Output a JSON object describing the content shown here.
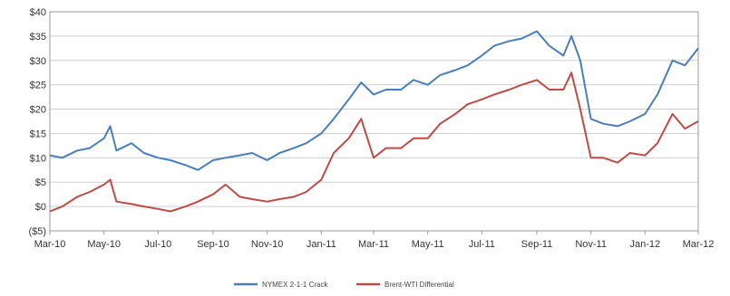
{
  "chart_data": {
    "type": "line",
    "title": "",
    "xlabel": "",
    "ylabel": "",
    "ylim": [
      -5,
      40
    ],
    "y_ticks": [
      "($5)",
      "$0",
      "$5",
      "$10",
      "$15",
      "$20",
      "$25",
      "$30",
      "$35",
      "$40"
    ],
    "y_tick_values": [
      -5,
      0,
      5,
      10,
      15,
      20,
      25,
      30,
      35,
      40
    ],
    "x_ticks": [
      "Mar-10",
      "May-10",
      "Jul-10",
      "Sep-10",
      "Nov-10",
      "Jan-11",
      "Mar-11",
      "May-11",
      "Jul-11",
      "Sep-11",
      "Nov-11",
      "Jan-12",
      "Mar-12"
    ],
    "x_tick_values": [
      "2010-03-01",
      "2010-05-01",
      "2010-07-01",
      "2010-09-01",
      "2010-11-01",
      "2011-01-01",
      "2011-03-01",
      "2011-05-01",
      "2011-07-01",
      "2011-09-01",
      "2011-11-01",
      "2012-01-01",
      "2012-03-01"
    ],
    "xlim": [
      "2010-03-01",
      "2012-03-01"
    ],
    "grid": "horizontal",
    "legend_position": "bottom",
    "series": [
      {
        "name": "NYMEX 2-1-1 Crack",
        "color": "#4a7ebb",
        "x": [
          "2010-03-01",
          "2010-03-15",
          "2010-04-01",
          "2010-04-15",
          "2010-05-01",
          "2010-05-08",
          "2010-05-15",
          "2010-06-01",
          "2010-06-15",
          "2010-07-01",
          "2010-07-15",
          "2010-08-01",
          "2010-08-15",
          "2010-09-01",
          "2010-09-15",
          "2010-10-01",
          "2010-10-15",
          "2010-11-01",
          "2010-11-15",
          "2010-12-01",
          "2010-12-15",
          "2011-01-01",
          "2011-01-15",
          "2011-02-01",
          "2011-02-15",
          "2011-03-01",
          "2011-03-15",
          "2011-04-01",
          "2011-04-15",
          "2011-05-01",
          "2011-05-15",
          "2011-06-01",
          "2011-06-15",
          "2011-07-01",
          "2011-07-15",
          "2011-08-01",
          "2011-08-15",
          "2011-09-01",
          "2011-09-15",
          "2011-10-01",
          "2011-10-10",
          "2011-10-20",
          "2011-11-01",
          "2011-11-15",
          "2011-12-01",
          "2011-12-15",
          "2012-01-01",
          "2012-01-15",
          "2012-02-01",
          "2012-02-15",
          "2012-03-01"
        ],
        "values": [
          10.5,
          10,
          11.5,
          12,
          14,
          16.5,
          11.5,
          13,
          11,
          10,
          9.5,
          8.5,
          7.5,
          9.5,
          10,
          10.5,
          11,
          9.5,
          11,
          12,
          13,
          15,
          18,
          22,
          25.5,
          23,
          24,
          24,
          26,
          25,
          27,
          28,
          29,
          31,
          33,
          34,
          34.5,
          36,
          33,
          31,
          35,
          30,
          18,
          17,
          16.5,
          17.5,
          19,
          23,
          30,
          29,
          32.5
        ]
      },
      {
        "name": "Brent-WTI Differential",
        "color": "#be4b48",
        "x": [
          "2010-03-01",
          "2010-03-15",
          "2010-04-01",
          "2010-04-15",
          "2010-05-01",
          "2010-05-08",
          "2010-05-15",
          "2010-06-01",
          "2010-06-15",
          "2010-07-01",
          "2010-07-15",
          "2010-08-01",
          "2010-08-15",
          "2010-09-01",
          "2010-09-15",
          "2010-10-01",
          "2010-10-15",
          "2010-11-01",
          "2010-11-15",
          "2010-12-01",
          "2010-12-15",
          "2011-01-01",
          "2011-01-15",
          "2011-02-01",
          "2011-02-15",
          "2011-03-01",
          "2011-03-15",
          "2011-04-01",
          "2011-04-15",
          "2011-05-01",
          "2011-05-15",
          "2011-06-01",
          "2011-06-15",
          "2011-07-01",
          "2011-07-15",
          "2011-08-01",
          "2011-08-15",
          "2011-09-01",
          "2011-09-15",
          "2011-10-01",
          "2011-10-10",
          "2011-10-20",
          "2011-11-01",
          "2011-11-15",
          "2011-12-01",
          "2011-12-15",
          "2012-01-01",
          "2012-01-15",
          "2012-02-01",
          "2012-02-15",
          "2012-03-01"
        ],
        "values": [
          -1,
          0,
          2,
          3,
          4.5,
          5.5,
          1,
          0.5,
          0,
          -0.5,
          -1,
          0,
          1,
          2.5,
          4.5,
          2,
          1.5,
          1,
          1.5,
          2,
          3,
          5.5,
          11,
          14,
          18,
          10,
          12,
          12,
          14,
          14,
          17,
          19,
          21,
          22,
          23,
          24,
          25,
          26,
          24,
          24,
          27.5,
          20,
          10,
          10,
          9,
          11,
          10.5,
          13,
          19,
          16,
          17.5
        ]
      }
    ]
  }
}
